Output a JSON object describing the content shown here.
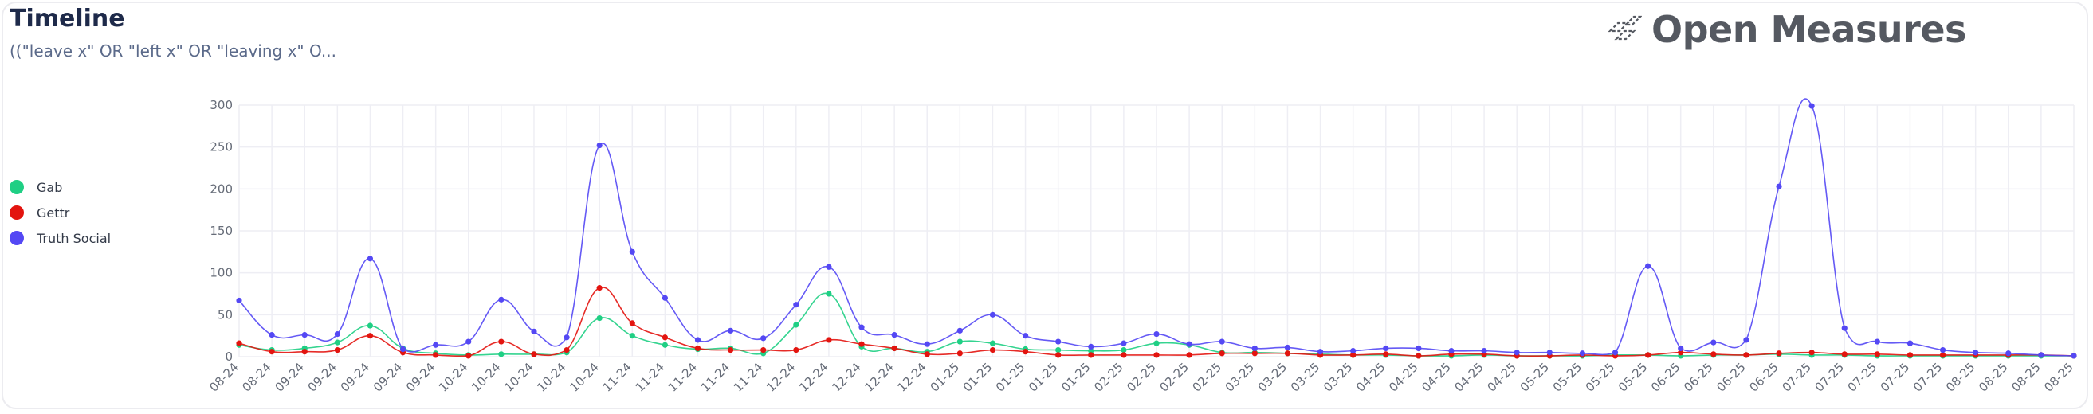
{
  "header": {
    "title": "Timeline",
    "query": "((\"leave x\" OR \"left x\" OR \"leaving x\" O...",
    "brand": "Open Measures"
  },
  "colors": {
    "Gab": "#1fcf84",
    "Gettr": "#e3140f",
    "Truth Social": "#5448f4",
    "grid": "#eeeef4"
  },
  "chart_data": {
    "type": "line",
    "title": "",
    "xlabel": "",
    "ylabel": "",
    "ylim": [
      0,
      300
    ],
    "yticks": [
      0,
      50,
      100,
      150,
      200,
      250,
      300
    ],
    "grid": true,
    "legend_position": "left",
    "x": [
      "08-24",
      "08-24",
      "09-24",
      "09-24",
      "09-24",
      "09-24",
      "09-24",
      "10-24",
      "10-24",
      "10-24",
      "10-24",
      "10-24",
      "11-24",
      "11-24",
      "11-24",
      "11-24",
      "11-24",
      "12-24",
      "12-24",
      "12-24",
      "12-24",
      "12-24",
      "01-25",
      "01-25",
      "01-25",
      "01-25",
      "01-25",
      "02-25",
      "02-25",
      "02-25",
      "02-25",
      "03-25",
      "03-25",
      "03-25",
      "03-25",
      "04-25",
      "04-25",
      "04-25",
      "04-25",
      "04-25",
      "05-25",
      "05-25",
      "05-25",
      "05-25",
      "06-25",
      "06-25",
      "06-25",
      "06-25",
      "07-25",
      "07-25",
      "07-25",
      "07-25",
      "07-25",
      "08-25",
      "08-25",
      "08-25",
      "08-25"
    ],
    "series": [
      {
        "name": "Gab",
        "values": [
          14,
          8,
          10,
          17,
          37,
          10,
          4,
          2,
          3,
          3,
          5,
          46,
          25,
          14,
          9,
          10,
          4,
          38,
          75,
          12,
          10,
          6,
          18,
          16,
          9,
          8,
          7,
          8,
          16,
          14,
          5,
          5,
          4,
          3,
          2,
          2,
          1,
          1,
          2,
          1,
          1,
          1,
          2,
          2,
          1,
          2,
          2,
          3,
          2,
          2,
          1,
          1,
          1,
          1,
          1,
          1,
          1
        ]
      },
      {
        "name": "Gettr",
        "values": [
          16,
          6,
          6,
          8,
          25,
          5,
          2,
          1,
          18,
          3,
          8,
          82,
          40,
          23,
          10,
          8,
          8,
          8,
          20,
          15,
          10,
          3,
          4,
          8,
          6,
          2,
          2,
          2,
          2,
          2,
          4,
          4,
          4,
          2,
          2,
          3,
          1,
          3,
          3,
          1,
          1,
          2,
          1,
          2,
          5,
          3,
          2,
          4,
          5,
          3,
          3,
          2,
          2,
          2,
          2,
          2,
          1
        ]
      },
      {
        "name": "Truth Social",
        "values": [
          67,
          26,
          26,
          27,
          117,
          9,
          14,
          18,
          68,
          30,
          23,
          252,
          125,
          70,
          20,
          31,
          22,
          62,
          107,
          35,
          26,
          15,
          31,
          50,
          25,
          18,
          12,
          16,
          27,
          15,
          18,
          10,
          11,
          6,
          7,
          10,
          10,
          7,
          7,
          5,
          5,
          4,
          5,
          108,
          10,
          17,
          20,
          203,
          299,
          34,
          18,
          16,
          8,
          5,
          4,
          2,
          1
        ]
      }
    ]
  }
}
